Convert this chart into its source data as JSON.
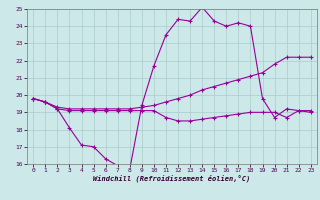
{
  "xlabel": "Windchill (Refroidissement éolien,°C)",
  "background_color": "#cce8e8",
  "grid_color": "#aacccc",
  "line_color": "#990099",
  "xlim": [
    -0.5,
    23.5
  ],
  "ylim": [
    16,
    25
  ],
  "yticks": [
    16,
    17,
    18,
    19,
    20,
    21,
    22,
    23,
    24,
    25
  ],
  "xticks": [
    0,
    1,
    2,
    3,
    4,
    5,
    6,
    7,
    8,
    9,
    10,
    11,
    12,
    13,
    14,
    15,
    16,
    17,
    18,
    19,
    20,
    21,
    22,
    23
  ],
  "series1_x": [
    0,
    1,
    2,
    3,
    4,
    5,
    6,
    7,
    8,
    9,
    10,
    11,
    12,
    13,
    14,
    15,
    16,
    17,
    18,
    19,
    20,
    21,
    22,
    23
  ],
  "series1_y": [
    19.8,
    19.6,
    19.2,
    18.1,
    17.1,
    17.0,
    16.3,
    15.9,
    15.7,
    19.4,
    21.7,
    23.5,
    24.4,
    24.3,
    25.1,
    24.3,
    24.0,
    24.2,
    24.0,
    19.8,
    18.7,
    19.2,
    19.1,
    19.1
  ],
  "series2_x": [
    0,
    1,
    2,
    3,
    4,
    5,
    6,
    7,
    8,
    9,
    10,
    11,
    12,
    13,
    14,
    15,
    16,
    17,
    18,
    19,
    20,
    21,
    22,
    23
  ],
  "series2_y": [
    19.8,
    19.6,
    19.3,
    19.2,
    19.2,
    19.2,
    19.2,
    19.2,
    19.2,
    19.3,
    19.4,
    19.6,
    19.8,
    20.0,
    20.3,
    20.5,
    20.7,
    20.9,
    21.1,
    21.3,
    21.8,
    22.2,
    22.2,
    22.2
  ],
  "series3_x": [
    0,
    1,
    2,
    3,
    4,
    5,
    6,
    7,
    8,
    9,
    10,
    11,
    12,
    13,
    14,
    15,
    16,
    17,
    18,
    19,
    20,
    21,
    22,
    23
  ],
  "series3_y": [
    19.8,
    19.6,
    19.2,
    19.1,
    19.1,
    19.1,
    19.1,
    19.1,
    19.1,
    19.1,
    19.1,
    18.7,
    18.5,
    18.5,
    18.6,
    18.7,
    18.8,
    18.9,
    19.0,
    19.0,
    19.0,
    18.7,
    19.1,
    19.0
  ]
}
